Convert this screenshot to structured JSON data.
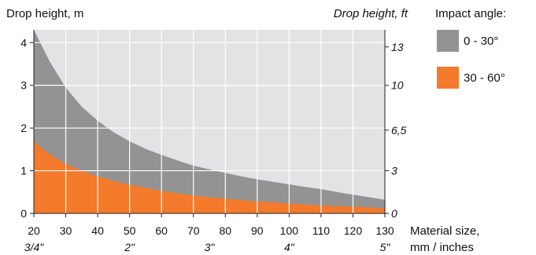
{
  "chart_data": {
    "type": "area",
    "ylabel_left": "Drop height, m",
    "ylabel_right": "Drop height, ft",
    "xlabel_line1": "Material size,",
    "xlabel_line2": "mm / inches",
    "xlim": [
      20,
      130
    ],
    "ylim": [
      0,
      4.3
    ],
    "x_ticks": [
      "20",
      "30",
      "40",
      "50",
      "60",
      "70",
      "80",
      "90",
      "100",
      "110",
      "120",
      "130"
    ],
    "x_inch_ticks": [
      {
        "x": 20,
        "label": "3/4\""
      },
      {
        "x": 50,
        "label": "2\""
      },
      {
        "x": 75,
        "label": "3\""
      },
      {
        "x": 100,
        "label": "4\""
      },
      {
        "x": 130,
        "label": "5\""
      }
    ],
    "y_ticks": [
      "0",
      "1",
      "2",
      "3",
      "4"
    ],
    "y_ft_ticks": [
      {
        "m": 0,
        "label": "0"
      },
      {
        "m": 1,
        "label": "3"
      },
      {
        "m": 1.95,
        "label": "6,5"
      },
      {
        "m": 3.0,
        "label": "10"
      },
      {
        "m": 3.9,
        "label": "13"
      }
    ],
    "grid": true,
    "series": [
      {
        "name": "0 - 30°",
        "color": "#939393",
        "x": [
          20,
          25,
          30,
          35,
          40,
          45,
          50,
          55,
          60,
          65,
          70,
          75,
          80,
          85,
          90,
          95,
          100,
          105,
          110,
          115,
          120,
          125,
          130
        ],
        "y": [
          4.3,
          3.55,
          2.95,
          2.5,
          2.17,
          1.9,
          1.69,
          1.51,
          1.37,
          1.24,
          1.12,
          1.03,
          0.95,
          0.87,
          0.8,
          0.74,
          0.68,
          0.62,
          0.57,
          0.5,
          0.44,
          0.38,
          0.32
        ]
      },
      {
        "name": "30 - 60°",
        "color": "#f47a2c",
        "x": [
          20,
          25,
          30,
          35,
          40,
          45,
          50,
          55,
          60,
          65,
          70,
          75,
          80,
          85,
          90,
          95,
          100,
          105,
          110,
          115,
          120,
          125,
          130
        ],
        "y": [
          1.68,
          1.38,
          1.16,
          1.0,
          0.87,
          0.76,
          0.67,
          0.6,
          0.53,
          0.47,
          0.42,
          0.38,
          0.35,
          0.31,
          0.28,
          0.26,
          0.23,
          0.21,
          0.19,
          0.17,
          0.16,
          0.14,
          0.12
        ]
      }
    ],
    "colors": {
      "background_area": "#e3e3e5",
      "grid": "#ffffff"
    }
  },
  "legend": {
    "title": "Impact angle:",
    "items": [
      {
        "label": "0 - 30°",
        "color": "#939393"
      },
      {
        "label": "30 - 60°",
        "color": "#f47a2c"
      }
    ]
  }
}
